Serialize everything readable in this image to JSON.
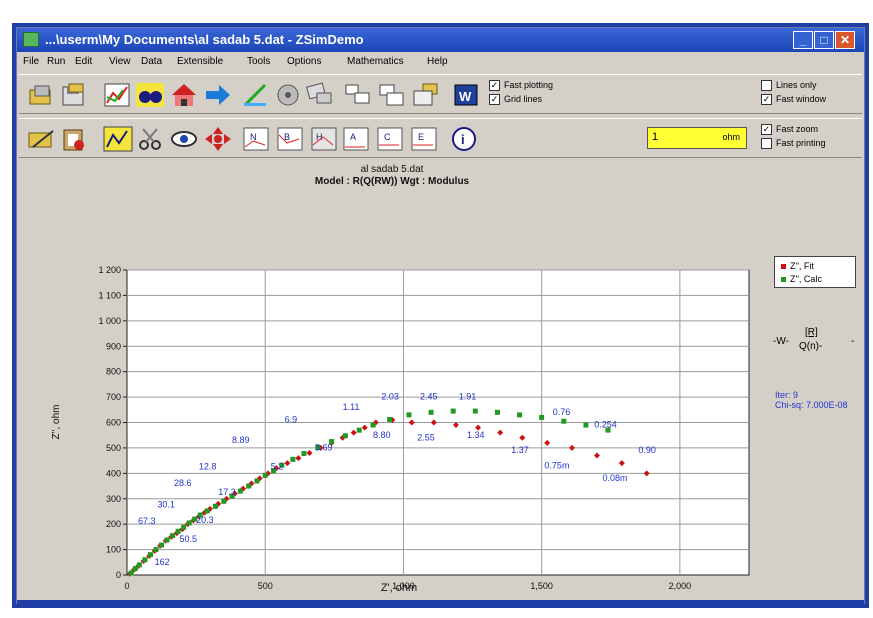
{
  "window": {
    "title": "...\\userm\\My Documents\\al sadab 5.dat - ZSimDemo",
    "min_label": "_",
    "max_label": "□",
    "close_label": "✕"
  },
  "menu": [
    "File",
    "Run",
    "Edit",
    "View",
    "Data",
    "Extensible",
    "Tools",
    "Options",
    "Mathematics",
    "Help"
  ],
  "toolbar1": {
    "icons": [
      "open-folder-icon",
      "save-icon",
      "chart-icon",
      "binoculars-icon",
      "house-icon",
      "arrow-right-icon",
      "pen-icon",
      "disk-spin-icon",
      "network-icon",
      "window-icon",
      "window-alt-icon",
      "folder-save-icon",
      "word-icon"
    ],
    "checks_a": [
      {
        "label": "Fast plotting",
        "checked": true
      },
      {
        "label": "Grid lines",
        "checked": true
      }
    ],
    "checks_b": [
      {
        "label": "Lines only",
        "checked": false
      },
      {
        "label": "Fast window",
        "checked": true
      }
    ]
  },
  "toolbar2": {
    "icons": [
      "edit-data-icon",
      "clipboard-icon",
      "fit-icon",
      "scissors-icon",
      "eye-icon",
      "cross-arrows-icon",
      "nyquist-icon",
      "bode-icon",
      "hz-icon",
      "admittance-icon",
      "capacitance-icon",
      "modulus-icon",
      "info-icon"
    ],
    "spin": {
      "value": "1",
      "unit": "ohm"
    },
    "checks": [
      {
        "label": "Fast zoom",
        "checked": true
      },
      {
        "label": "Fast printing",
        "checked": false
      }
    ]
  },
  "chart_data": {
    "type": "scatter",
    "title": "al sadab 5.dat",
    "subtitle": "Model : R(Q(RW)) Wgt : Modulus",
    "xlabel": "Z', ohm",
    "ylabel": "Z'', ohm",
    "xlim": [
      0,
      2250
    ],
    "ylim": [
      0,
      1200
    ],
    "xticks": [
      0,
      500,
      1000,
      1500,
      2000
    ],
    "xtick_labels": [
      "0",
      "500",
      "1,000",
      "1,500",
      "2,000"
    ],
    "yticks": [
      0,
      100,
      200,
      300,
      400,
      500,
      600,
      700,
      800,
      900,
      1000,
      1100,
      1200
    ],
    "ytick_labels": [
      "0",
      "100",
      "200",
      "300",
      "400",
      "500",
      "600",
      "700",
      "800",
      "900",
      "1 000",
      "1 100",
      "1 200"
    ],
    "grid": true,
    "legend_position": "top-right",
    "series": [
      {
        "name": "Z'', Fit",
        "color": "#cc1111",
        "marker": "diamond",
        "x": [
          10,
          25,
          40,
          60,
          80,
          100,
          120,
          140,
          160,
          180,
          200,
          220,
          240,
          260,
          280,
          300,
          330,
          360,
          390,
          420,
          450,
          480,
          510,
          540,
          580,
          620,
          660,
          700,
          740,
          780,
          820,
          860,
          900,
          960,
          1030,
          1110,
          1190,
          1270,
          1350,
          1430,
          1520,
          1610,
          1700,
          1790,
          1880
        ],
        "y": [
          5,
          20,
          35,
          55,
          75,
          95,
          115,
          135,
          150,
          165,
          180,
          200,
          215,
          230,
          245,
          260,
          280,
          300,
          320,
          340,
          360,
          380,
          400,
          420,
          440,
          460,
          480,
          500,
          520,
          540,
          560,
          580,
          600,
          610,
          600,
          600,
          590,
          580,
          560,
          540,
          520,
          500,
          470,
          440,
          400
        ]
      },
      {
        "name": "Z'', Calc",
        "color": "#229922",
        "marker": "square",
        "x": [
          15,
          30,
          45,
          65,
          85,
          105,
          125,
          145,
          165,
          185,
          205,
          225,
          245,
          265,
          290,
          320,
          350,
          380,
          410,
          440,
          470,
          500,
          530,
          560,
          600,
          640,
          690,
          740,
          790,
          840,
          890,
          950,
          1020,
          1100,
          1180,
          1260,
          1340,
          1420,
          1500,
          1580,
          1660,
          1740
        ],
        "y": [
          8,
          25,
          40,
          60,
          80,
          100,
          118,
          138,
          155,
          172,
          188,
          205,
          220,
          236,
          252,
          270,
          290,
          310,
          330,
          350,
          370,
          392,
          410,
          432,
          455,
          478,
          502,
          525,
          548,
          570,
          590,
          612,
          630,
          640,
          645,
          645,
          640,
          630,
          620,
          605,
          590,
          570
        ]
      }
    ],
    "annotations": [
      {
        "text": "162",
        "x": 100,
        "y": 40
      },
      {
        "text": "50.5",
        "x": 190,
        "y": 130
      },
      {
        "text": "67.3",
        "x": 40,
        "y": 200
      },
      {
        "text": "30.1",
        "x": 110,
        "y": 265
      },
      {
        "text": "20.3",
        "x": 250,
        "y": 205
      },
      {
        "text": "28.6",
        "x": 170,
        "y": 350
      },
      {
        "text": "17.3",
        "x": 330,
        "y": 315
      },
      {
        "text": "12.8",
        "x": 260,
        "y": 415
      },
      {
        "text": "8.89",
        "x": 380,
        "y": 520
      },
      {
        "text": "5.2",
        "x": 520,
        "y": 415
      },
      {
        "text": "6.9",
        "x": 570,
        "y": 600
      },
      {
        "text": "3.69",
        "x": 680,
        "y": 490
      },
      {
        "text": "1.11",
        "x": 780,
        "y": 650
      },
      {
        "text": "2.03",
        "x": 920,
        "y": 690
      },
      {
        "text": "8.80",
        "x": 890,
        "y": 540
      },
      {
        "text": "2.45",
        "x": 1060,
        "y": 690
      },
      {
        "text": "1.91",
        "x": 1200,
        "y": 690
      },
      {
        "text": "2.55",
        "x": 1050,
        "y": 530
      },
      {
        "text": "1.34",
        "x": 1230,
        "y": 540
      },
      {
        "text": "1.37",
        "x": 1390,
        "y": 480
      },
      {
        "text": "0.76",
        "x": 1540,
        "y": 630
      },
      {
        "text": "0.75m",
        "x": 1510,
        "y": 420
      },
      {
        "text": "0.254",
        "x": 1690,
        "y": 580
      },
      {
        "text": "0.08m",
        "x": 1720,
        "y": 370
      },
      {
        "text": "0.90",
        "x": 1850,
        "y": 480
      }
    ]
  },
  "legend": [
    {
      "label": "Z'', Fit",
      "color": "#cc1111"
    },
    {
      "label": "Z'', Calc",
      "color": "#229922"
    }
  ],
  "circuit": {
    "left": "-W-",
    "mid": "[R]",
    "bottom": "Q(n)-",
    "right": "-"
  },
  "fit_note": {
    "line1": "Iter: 9",
    "line2": "Chi-sq: 7.000E-08"
  }
}
